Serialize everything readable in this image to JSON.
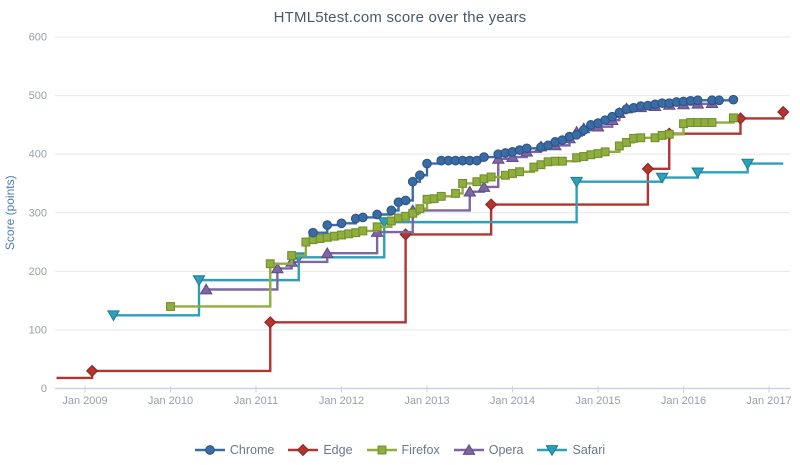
{
  "chart_data": {
    "type": "line",
    "subtype": "step",
    "title": "HTML5test.com score over the years",
    "xlabel": "",
    "ylabel": "Score (points)",
    "ylim": [
      0,
      600
    ],
    "yticks": [
      0,
      100,
      200,
      300,
      400,
      500,
      600
    ],
    "xticklabels": [
      "Jan 2009",
      "Jan 2010",
      "Jan 2011",
      "Jan 2012",
      "Jan 2013",
      "Jan 2014",
      "Jan 2015",
      "Jan 2016",
      "Jan 2017"
    ],
    "grid": "horizontal",
    "legend_position": "bottom",
    "colors": {
      "title_text": "#47596e",
      "axis_label_text": "#4e7cb0",
      "tick_text": "#97a0a8",
      "legend_text": "#68798a",
      "gridline": "#e7e7e7",
      "axis_line": "#c9d3e2"
    },
    "series": [
      {
        "name": "Edge",
        "marker": "diamond",
        "color": "#b23532",
        "edge_color": "#8c2724",
        "points": [
          [
            "2008-09",
            18,
            0
          ],
          [
            "2009-02",
            30
          ],
          [
            "2011-03",
            113
          ],
          [
            "2012-10",
            263
          ],
          [
            "2013-10",
            314
          ],
          [
            "2015-08",
            375
          ],
          [
            "2015-11",
            435
          ],
          [
            "2016-09",
            461
          ],
          [
            "2017-03",
            472
          ]
        ]
      },
      {
        "name": "Safari",
        "marker": "triangle-down",
        "color": "#2d9fba",
        "edge_color": "#1f7f99",
        "points": [
          [
            "2009-05",
            125
          ],
          [
            "2010-05",
            185
          ],
          [
            "2011-07",
            224
          ],
          [
            "2012-07",
            284
          ],
          [
            "2014-10",
            353
          ],
          [
            "2015-10",
            360
          ],
          [
            "2016-03",
            369
          ],
          [
            "2016-10",
            384
          ],
          [
            "2017-03",
            384,
            0
          ]
        ]
      },
      {
        "name": "Opera",
        "marker": "triangle-up",
        "color": "#7e66a2",
        "edge_color": "#624e85",
        "points": [
          [
            "2010-06",
            169
          ],
          [
            "2011-04",
            205
          ],
          [
            "2011-06",
            216
          ],
          [
            "2011-11",
            231
          ],
          [
            "2012-06",
            267
          ],
          [
            "2012-11",
            304
          ],
          [
            "2013-07",
            336
          ],
          [
            "2013-09",
            344
          ],
          [
            "2013-11",
            392
          ],
          [
            "2014-01",
            395
          ],
          [
            "2014-03",
            404
          ],
          [
            "2014-05",
            413
          ],
          [
            "2014-07",
            415
          ],
          [
            "2014-09",
            427
          ],
          [
            "2014-10",
            438
          ],
          [
            "2014-11",
            444
          ],
          [
            "2015-01",
            447
          ],
          [
            "2015-03",
            458
          ],
          [
            "2015-04",
            470
          ],
          [
            "2015-05",
            478
          ],
          [
            "2015-07",
            480
          ],
          [
            "2015-09",
            482
          ],
          [
            "2015-11",
            484
          ],
          [
            "2016-01",
            485
          ],
          [
            "2016-03",
            486
          ],
          [
            "2016-05",
            487
          ]
        ]
      },
      {
        "name": "Firefox",
        "marker": "square",
        "color": "#8fae3e",
        "edge_color": "#71902c",
        "points": [
          [
            "2010-01",
            140
          ],
          [
            "2011-03",
            213
          ],
          [
            "2011-06",
            227
          ],
          [
            "2011-08",
            250
          ],
          [
            "2011-09",
            254
          ],
          [
            "2011-10",
            256
          ],
          [
            "2011-11",
            258
          ],
          [
            "2011-12",
            260
          ],
          [
            "2012-01",
            262
          ],
          [
            "2012-02",
            264
          ],
          [
            "2012-03",
            266
          ],
          [
            "2012-04",
            269
          ],
          [
            "2012-06",
            276
          ],
          [
            "2012-08",
            286
          ],
          [
            "2012-09",
            291
          ],
          [
            "2012-10",
            294
          ],
          [
            "2012-11",
            299
          ],
          [
            "2012-12",
            307
          ],
          [
            "2013-01",
            323
          ],
          [
            "2013-02",
            324
          ],
          [
            "2013-03",
            328
          ],
          [
            "2013-05",
            333
          ],
          [
            "2013-06",
            350
          ],
          [
            "2013-08",
            353
          ],
          [
            "2013-09",
            358
          ],
          [
            "2013-10",
            361
          ],
          [
            "2013-12",
            364
          ],
          [
            "2014-01",
            367
          ],
          [
            "2014-02",
            370
          ],
          [
            "2014-04",
            378
          ],
          [
            "2014-05",
            382
          ],
          [
            "2014-06",
            387
          ],
          [
            "2014-07",
            388
          ],
          [
            "2014-08",
            388
          ],
          [
            "2014-10",
            394
          ],
          [
            "2014-11",
            396
          ],
          [
            "2014-12",
            399
          ],
          [
            "2015-01",
            401
          ],
          [
            "2015-02",
            404
          ],
          [
            "2015-04",
            414
          ],
          [
            "2015-05",
            420
          ],
          [
            "2015-06",
            427
          ],
          [
            "2015-07",
            428
          ],
          [
            "2015-09",
            428
          ],
          [
            "2015-10",
            432
          ],
          [
            "2015-11",
            434
          ],
          [
            "2016-01",
            452
          ],
          [
            "2016-02",
            454
          ],
          [
            "2016-03",
            454
          ],
          [
            "2016-04",
            454
          ],
          [
            "2016-05",
            454
          ],
          [
            "2016-08",
            462
          ]
        ]
      },
      {
        "name": "Chrome",
        "marker": "circle",
        "color": "#3b6ba5",
        "edge_color": "#2a5487",
        "points": [
          [
            "2011-09",
            266
          ],
          [
            "2011-11",
            279
          ],
          [
            "2012-01",
            282
          ],
          [
            "2012-03",
            290
          ],
          [
            "2012-04",
            292
          ],
          [
            "2012-06",
            297
          ],
          [
            "2012-08",
            304
          ],
          [
            "2012-09",
            318
          ],
          [
            "2012-10",
            321
          ],
          [
            "2012-11",
            353
          ],
          [
            "2012-12",
            364
          ],
          [
            "2013-01",
            384
          ],
          [
            "2013-03",
            389
          ],
          [
            "2013-04",
            389
          ],
          [
            "2013-05",
            389
          ],
          [
            "2013-06",
            389
          ],
          [
            "2013-07",
            389
          ],
          [
            "2013-08",
            389
          ],
          [
            "2013-09",
            395
          ],
          [
            "2013-11",
            400
          ],
          [
            "2013-12",
            402
          ],
          [
            "2014-01",
            404
          ],
          [
            "2014-02",
            407
          ],
          [
            "2014-03",
            410
          ],
          [
            "2014-05",
            412
          ],
          [
            "2014-06",
            415
          ],
          [
            "2014-07",
            421
          ],
          [
            "2014-08",
            424
          ],
          [
            "2014-09",
            430
          ],
          [
            "2014-10",
            433
          ],
          [
            "2014-11",
            441
          ],
          [
            "2014-12",
            450
          ],
          [
            "2015-01",
            453
          ],
          [
            "2015-02",
            458
          ],
          [
            "2015-03",
            464
          ],
          [
            "2015-04",
            471
          ],
          [
            "2015-05",
            477
          ],
          [
            "2015-06",
            479
          ],
          [
            "2015-07",
            482
          ],
          [
            "2015-08",
            483
          ],
          [
            "2015-09",
            485
          ],
          [
            "2015-10",
            487
          ],
          [
            "2015-11",
            487
          ],
          [
            "2015-12",
            489
          ],
          [
            "2016-01",
            490
          ],
          [
            "2016-02",
            491
          ],
          [
            "2016-03",
            492
          ],
          [
            "2016-05",
            492
          ],
          [
            "2016-06",
            492
          ],
          [
            "2016-08",
            493
          ]
        ]
      }
    ],
    "legend_order": [
      "Chrome",
      "Edge",
      "Firefox",
      "Opera",
      "Safari"
    ]
  }
}
